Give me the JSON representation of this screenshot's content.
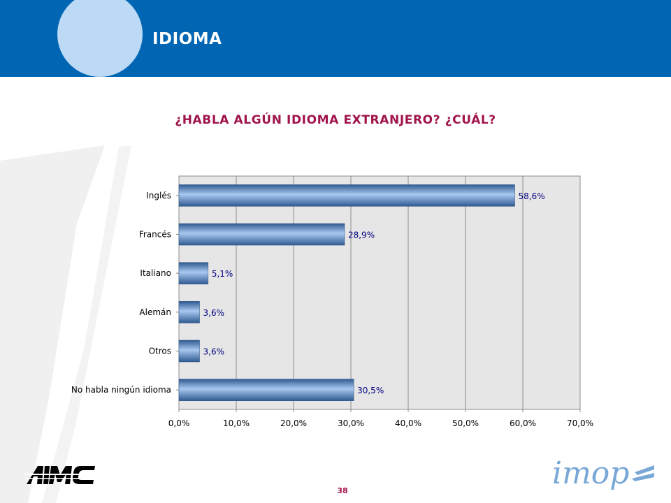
{
  "slide": {
    "title": "IDIOMA",
    "page_number": "38",
    "logos": {
      "left": "AIMC",
      "right": "imop"
    }
  },
  "colors": {
    "header_blue": "#0066b3",
    "circle": "#bcd9f5",
    "title_magenta": "#a0144c",
    "bar_light": "#a8c8f0",
    "bar_dark": "#3f6aa3",
    "plot_bg": "#e6e6e6",
    "label_text": "#000080"
  },
  "chart_data": {
    "type": "bar",
    "orientation": "horizontal",
    "title": "¿HABLA ALGÚN IDIOMA EXTRANJERO? ¿CUÁL?",
    "categories": [
      "Inglés",
      "Francés",
      "Italiano",
      "Alemán",
      "Otros",
      "No habla ningún idioma"
    ],
    "values": [
      58.6,
      28.9,
      5.1,
      3.6,
      3.6,
      30.5
    ],
    "value_labels": [
      "58,6%",
      "28,9%",
      "5,1%",
      "3,6%",
      "3,6%",
      "30,5%"
    ],
    "xlim": [
      0,
      70
    ],
    "xticks": [
      0,
      10,
      20,
      30,
      40,
      50,
      60,
      70
    ],
    "xtick_labels": [
      "0,0%",
      "10,0%",
      "20,0%",
      "30,0%",
      "40,0%",
      "50,0%",
      "60,0%",
      "70,0%"
    ],
    "grid": true,
    "legend": "none"
  }
}
